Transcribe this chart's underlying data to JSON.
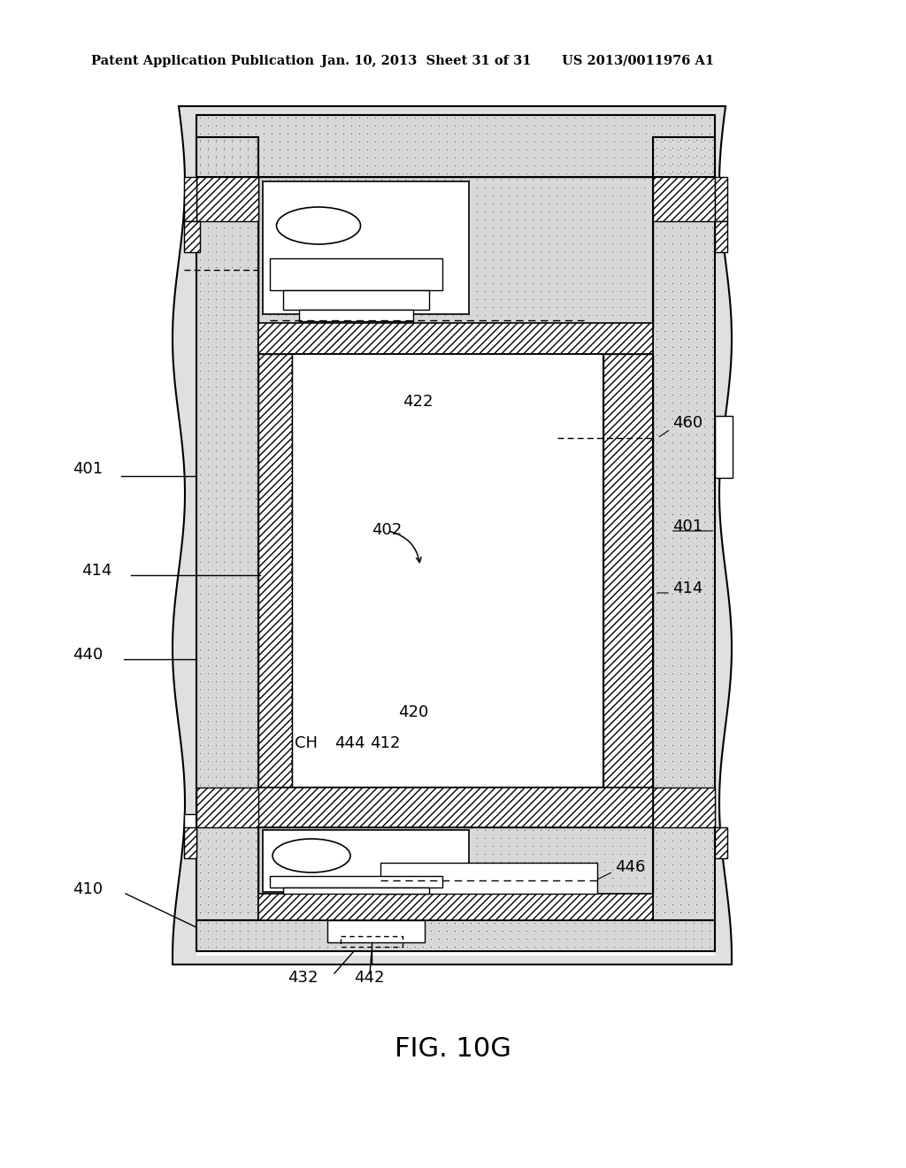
{
  "title": "FIG. 10G",
  "header_left": "Patent Application Publication",
  "header_mid": "Jan. 10, 2013  Sheet 31 of 31",
  "header_right": "US 2013/0011976 A1",
  "bg_color": "#ffffff",
  "labels": {
    "401_left": "401",
    "401_right": "401",
    "402": "402",
    "410": "410",
    "412": "412",
    "414_left": "414",
    "414_right": "414",
    "420": "420",
    "422": "422",
    "432": "432",
    "440": "440",
    "442": "442",
    "444": "444",
    "446": "446",
    "460": "460",
    "CH": "CH"
  }
}
